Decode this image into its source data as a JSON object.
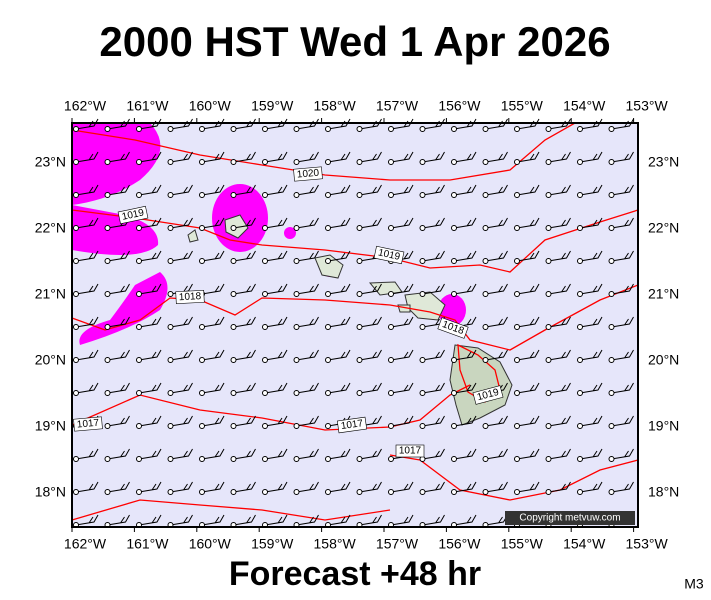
{
  "title": "2000 HST Wed 1 Apr 2026",
  "lon_labels": [
    "162°W",
    "161°W",
    "160°W",
    "159°W",
    "158°W",
    "157°W",
    "156°W",
    "155°W",
    "154°W",
    "153°W"
  ],
  "lat_labels": [
    "23°N",
    "22°N",
    "21°N",
    "20°N",
    "19°N",
    "18°N"
  ],
  "isobar_labels": [
    "1020",
    "1019",
    "1019",
    "1018",
    "1018",
    "1019",
    "1017",
    "1017",
    "1017"
  ],
  "copyright": "Copyright metvuw.com",
  "footer": "Forecast +48 hr",
  "code": "M3"
}
